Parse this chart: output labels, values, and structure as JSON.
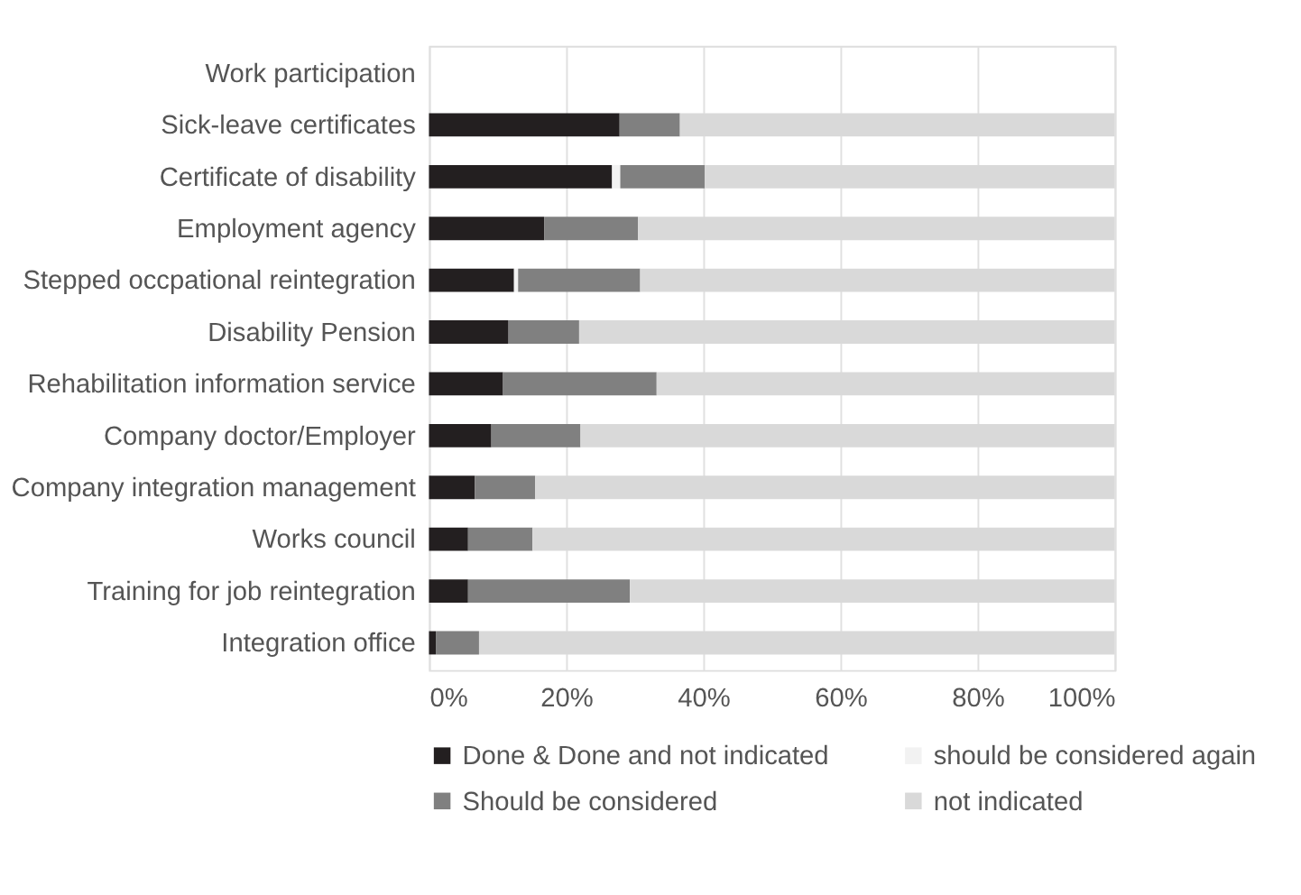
{
  "chart_data": {
    "type": "bar",
    "orientation": "horizontal",
    "stacked": true,
    "categories": [
      "Work participation",
      "Sick-leave certificates",
      "Certificate of disability",
      "Employment agency",
      "Stepped occpational reintegration",
      "Disability Pension",
      "Rehabilitation information service",
      "Company doctor/Employer",
      "Company integration management",
      "Works council",
      "Training for job reintegration",
      "Integration office"
    ],
    "series": [
      {
        "name": "Done & Done and not indicated",
        "color": "#231f20",
        "values": [
          null,
          27.8,
          26.7,
          16.8,
          12.4,
          11.6,
          10.8,
          9.1,
          6.7,
          5.7,
          5.7,
          1.0
        ]
      },
      {
        "name": "should be considered again",
        "color": "#f2f2f2",
        "values": [
          null,
          0,
          1.2,
          0,
          0.6,
          0,
          0,
          0,
          0,
          0,
          0,
          0
        ]
      },
      {
        "name": "Should be considered",
        "color": "#808080",
        "values": [
          null,
          8.8,
          12.3,
          13.7,
          17.8,
          10.3,
          22.4,
          13.0,
          8.8,
          9.4,
          23.6,
          6.3
        ]
      },
      {
        "name": "not indicated",
        "color": "#d9d9d9",
        "values": [
          null,
          63.4,
          59.8,
          69.5,
          69.2,
          78.1,
          66.8,
          77.9,
          84.5,
          84.9,
          70.7,
          92.7
        ]
      }
    ],
    "xlim": [
      0,
      100
    ],
    "xticks": [
      {
        "value": 0,
        "label": "0%"
      },
      {
        "value": 20,
        "label": "20%"
      },
      {
        "value": 40,
        "label": "40%"
      },
      {
        "value": 60,
        "label": "60%"
      },
      {
        "value": 80,
        "label": "80%"
      },
      {
        "value": 100,
        "label": "100%"
      }
    ],
    "grid": "x",
    "legend": "bottom"
  }
}
